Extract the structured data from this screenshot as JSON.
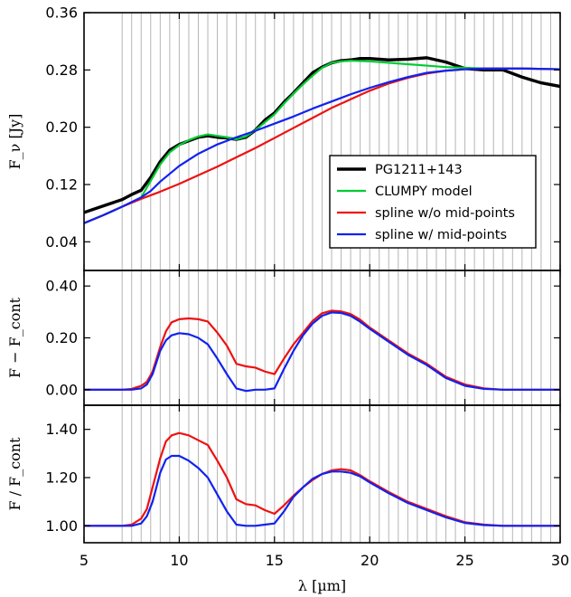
{
  "chart_data": [
    {
      "type": "line",
      "panel": "top",
      "ylabel": "F_ν [Jy]",
      "xlim": [
        5,
        30
      ],
      "ylim": [
        0.0,
        0.36
      ],
      "yticks": [
        "0.04",
        "0.12",
        "0.20",
        "0.28",
        "0.36"
      ],
      "xticks": [
        5,
        10,
        15,
        20,
        25,
        30
      ],
      "grid": "vertical lines every 0.5 µm from 7 to 30",
      "legend_position": "lower-right",
      "series": [
        {
          "name": "PG1211+143",
          "color": "#000000",
          "x": [
            5,
            6,
            7,
            7.5,
            8,
            8.5,
            9,
            9.5,
            10,
            10.5,
            11,
            11.5,
            12,
            12.5,
            13,
            13.5,
            14,
            14.5,
            15,
            15.5,
            16,
            16.5,
            17,
            17.5,
            18,
            18.5,
            19,
            19.5,
            20,
            21,
            22,
            23,
            24,
            25,
            26,
            27,
            28,
            29,
            30
          ],
          "y": [
            0.081,
            0.09,
            0.099,
            0.106,
            0.112,
            0.13,
            0.152,
            0.168,
            0.176,
            0.181,
            0.186,
            0.188,
            0.186,
            0.185,
            0.183,
            0.186,
            0.196,
            0.21,
            0.22,
            0.235,
            0.248,
            0.262,
            0.276,
            0.284,
            0.29,
            0.293,
            0.294,
            0.296,
            0.296,
            0.294,
            0.295,
            0.297,
            0.291,
            0.282,
            0.28,
            0.28,
            0.27,
            0.262,
            0.257
          ]
        },
        {
          "name": "CLUMPY model",
          "color": "#00cc33",
          "x": [
            5,
            6,
            7,
            7.5,
            8,
            8.5,
            9,
            9.5,
            10,
            10.5,
            11,
            11.5,
            12,
            12.5,
            13,
            13.5,
            14,
            14.5,
            15,
            15.5,
            16,
            16.5,
            17,
            17.5,
            18,
            18.5,
            19,
            20,
            21,
            22,
            23,
            24,
            25,
            26,
            27,
            28,
            30
          ],
          "y": [
            0.066,
            0.077,
            0.089,
            0.095,
            0.102,
            0.125,
            0.148,
            0.165,
            0.175,
            0.182,
            0.187,
            0.19,
            0.188,
            0.186,
            0.183,
            0.187,
            0.196,
            0.207,
            0.218,
            0.233,
            0.247,
            0.26,
            0.272,
            0.283,
            0.29,
            0.292,
            0.293,
            0.292,
            0.29,
            0.288,
            0.286,
            0.284,
            0.283,
            0.282,
            0.282,
            0.282,
            0.281
          ]
        },
        {
          "name": "spline w/o mid-points",
          "color": "#ee1111",
          "x": [
            5,
            6,
            7,
            8,
            9,
            10,
            11,
            12,
            13,
            14,
            15,
            16,
            17,
            18,
            19,
            20,
            21,
            22,
            23,
            24,
            25,
            26,
            27,
            28,
            30
          ],
          "y": [
            0.066,
            0.077,
            0.089,
            0.1,
            0.11,
            0.121,
            0.133,
            0.145,
            0.158,
            0.171,
            0.185,
            0.199,
            0.213,
            0.227,
            0.239,
            0.251,
            0.261,
            0.269,
            0.275,
            0.279,
            0.281,
            0.282,
            0.282,
            0.282,
            0.281
          ]
        },
        {
          "name": "spline w/ mid-points",
          "color": "#1122ee",
          "x": [
            5,
            6,
            7,
            8,
            8.5,
            9,
            10,
            11,
            12,
            13,
            14,
            15,
            16,
            17,
            18,
            19,
            20,
            21,
            22,
            23,
            24,
            25,
            26,
            27,
            28,
            30
          ],
          "y": [
            0.066,
            0.077,
            0.089,
            0.102,
            0.111,
            0.124,
            0.146,
            0.163,
            0.176,
            0.186,
            0.195,
            0.205,
            0.215,
            0.226,
            0.236,
            0.246,
            0.255,
            0.263,
            0.27,
            0.276,
            0.279,
            0.281,
            0.282,
            0.282,
            0.282,
            0.281
          ]
        }
      ]
    },
    {
      "type": "line",
      "panel": "middle",
      "ylabel": "F − F_cont",
      "xlim": [
        5,
        30
      ],
      "ylim": [
        -0.06,
        0.46
      ],
      "yticks": [
        "0.00",
        "0.20",
        "0.40"
      ],
      "xticks": [
        5,
        10,
        15,
        20,
        25,
        30
      ],
      "series": [
        {
          "name": "spline w/o mid-points",
          "color": "#ee1111",
          "x": [
            5,
            7,
            7.5,
            8,
            8.3,
            8.6,
            9,
            9.3,
            9.6,
            10,
            10.5,
            11,
            11.5,
            12,
            12.5,
            13,
            13.5,
            14,
            14.5,
            15,
            15.5,
            16,
            16.5,
            17,
            17.5,
            18,
            18.5,
            19,
            19.5,
            20,
            21,
            22,
            23,
            24,
            25,
            26,
            27,
            28,
            29,
            30
          ],
          "y": [
            0,
            0,
            0.003,
            0.015,
            0.03,
            0.07,
            0.165,
            0.225,
            0.26,
            0.272,
            0.275,
            0.272,
            0.263,
            0.22,
            0.17,
            0.1,
            0.09,
            0.085,
            0.07,
            0.06,
            0.12,
            0.175,
            0.22,
            0.265,
            0.295,
            0.305,
            0.302,
            0.292,
            0.27,
            0.24,
            0.19,
            0.14,
            0.1,
            0.05,
            0.02,
            0.005,
            0,
            0,
            0,
            0
          ]
        },
        {
          "name": "spline w/ mid-points",
          "color": "#1122ee",
          "x": [
            5,
            7,
            7.5,
            8,
            8.3,
            8.6,
            9,
            9.3,
            9.6,
            10,
            10.5,
            11,
            11.5,
            12,
            12.5,
            13,
            13.5,
            14,
            14.5,
            15,
            15.5,
            16,
            16.5,
            17,
            17.5,
            18,
            18.5,
            19,
            19.5,
            20,
            21,
            22,
            23,
            24,
            25,
            26,
            27,
            28,
            29,
            30
          ],
          "y": [
            0,
            0,
            0,
            0.005,
            0.02,
            0.06,
            0.15,
            0.19,
            0.21,
            0.218,
            0.214,
            0.2,
            0.175,
            0.12,
            0.06,
            0.005,
            -0.005,
            0,
            0,
            0.005,
            0.08,
            0.15,
            0.21,
            0.255,
            0.285,
            0.298,
            0.296,
            0.285,
            0.262,
            0.235,
            0.185,
            0.135,
            0.095,
            0.045,
            0.015,
            0.003,
            0,
            0,
            0,
            0
          ]
        }
      ]
    },
    {
      "type": "line",
      "panel": "bottom",
      "ylabel": "F / F_cont",
      "xlabel": "λ [µm]",
      "xlim": [
        5,
        30
      ],
      "ylim": [
        0.93,
        1.5
      ],
      "yticks": [
        "1.00",
        "1.20",
        "1.40"
      ],
      "xticks": [
        5,
        10,
        15,
        20,
        25,
        30
      ],
      "series": [
        {
          "name": "spline w/o mid-points",
          "color": "#ee1111",
          "x": [
            5,
            7,
            7.5,
            8,
            8.3,
            8.6,
            9,
            9.3,
            9.6,
            10,
            10.5,
            11,
            11.5,
            12,
            12.5,
            13,
            13.5,
            14,
            14.5,
            15,
            15.5,
            16,
            16.5,
            17,
            17.5,
            18,
            18.5,
            19,
            19.5,
            20,
            21,
            22,
            23,
            24,
            25,
            26,
            27,
            28,
            29,
            30
          ],
          "y": [
            1,
            1,
            1.005,
            1.03,
            1.07,
            1.16,
            1.28,
            1.35,
            1.375,
            1.385,
            1.375,
            1.355,
            1.335,
            1.27,
            1.2,
            1.11,
            1.09,
            1.085,
            1.065,
            1.05,
            1.085,
            1.125,
            1.16,
            1.19,
            1.215,
            1.23,
            1.235,
            1.23,
            1.21,
            1.185,
            1.14,
            1.1,
            1.07,
            1.04,
            1.015,
            1.005,
            1,
            1,
            1,
            1
          ]
        },
        {
          "name": "spline w/ mid-points",
          "color": "#1122ee",
          "x": [
            5,
            7,
            7.5,
            8,
            8.3,
            8.6,
            9,
            9.3,
            9.6,
            10,
            10.5,
            11,
            11.5,
            12,
            12.5,
            13,
            13.5,
            14,
            14.5,
            15,
            15.5,
            16,
            16.5,
            17,
            17.5,
            18,
            18.5,
            19,
            19.5,
            20,
            21,
            22,
            23,
            24,
            25,
            26,
            27,
            28,
            29,
            30
          ],
          "y": [
            1,
            1,
            1,
            1.01,
            1.04,
            1.1,
            1.22,
            1.275,
            1.29,
            1.29,
            1.27,
            1.24,
            1.2,
            1.13,
            1.06,
            1.005,
            1.0,
            1.0,
            1.005,
            1.01,
            1.06,
            1.12,
            1.16,
            1.195,
            1.215,
            1.225,
            1.225,
            1.22,
            1.205,
            1.18,
            1.135,
            1.095,
            1.065,
            1.035,
            1.012,
            1.003,
            1,
            1,
            1,
            1
          ]
        }
      ]
    }
  ]
}
